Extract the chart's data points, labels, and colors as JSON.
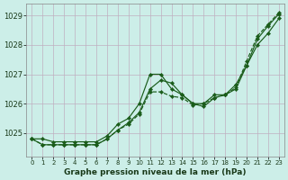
{
  "title": "Graphe pression niveau de la mer (hPa)",
  "yticks": [
    1025,
    1026,
    1027,
    1028,
    1029
  ],
  "ylim": [
    1024.2,
    1029.4
  ],
  "xlim": [
    -0.5,
    23.5
  ],
  "xticks": [
    0,
    1,
    2,
    3,
    4,
    5,
    6,
    7,
    8,
    9,
    10,
    11,
    12,
    13,
    14,
    15,
    16,
    17,
    18,
    19,
    20,
    21,
    22,
    23
  ],
  "background_color": "#cceee8",
  "grid_color": "#c0afc0",
  "line_color": "#1a5c1a",
  "series": [
    [
      1024.8,
      1024.8,
      1024.7,
      1024.7,
      1024.7,
      1024.7,
      1024.7,
      1024.9,
      1025.3,
      1025.5,
      1026.0,
      1027.0,
      1027.0,
      1026.5,
      1026.3,
      1026.0,
      1026.0,
      1026.3,
      1026.3,
      1026.5,
      1027.3,
      1028.2,
      1028.65,
      1029.05
    ],
    [
      1024.8,
      1024.6,
      1024.6,
      1024.6,
      1024.6,
      1024.6,
      1024.6,
      1024.8,
      1025.1,
      1025.35,
      1025.7,
      1026.5,
      1026.8,
      1026.7,
      1026.3,
      1026.0,
      1025.9,
      1026.2,
      1026.3,
      1026.65,
      1027.3,
      1028.0,
      1028.4,
      1028.9
    ],
    [
      1024.8,
      1024.6,
      1024.6,
      1024.6,
      1024.6,
      1024.6,
      1024.6,
      1024.8,
      1025.1,
      1025.3,
      1025.65,
      1026.4,
      1026.4,
      1026.25,
      1026.2,
      1025.95,
      1026.0,
      1026.2,
      1026.3,
      1026.55,
      1027.45,
      1028.3,
      1028.7,
      1029.1
    ]
  ],
  "line_styles": [
    "-",
    "-",
    "--"
  ],
  "figsize": [
    3.2,
    2.0
  ],
  "dpi": 100
}
